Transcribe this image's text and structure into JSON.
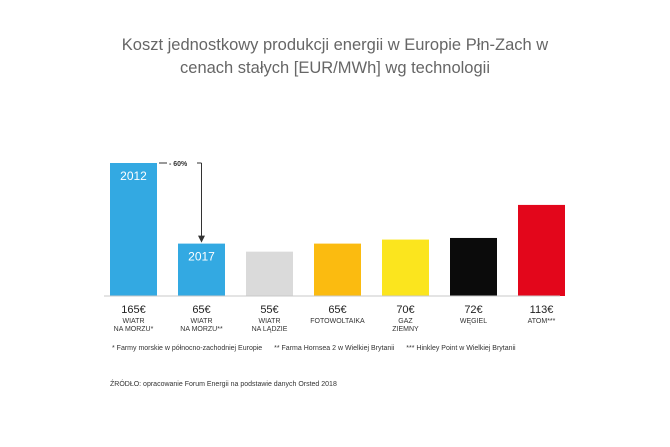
{
  "chart_data": {
    "type": "bar",
    "title": "Koszt jednostkowy produkcji energii w Europie Płn-Zach w cenach stałych [EUR/MWh] wg technologii",
    "title_lines": [
      "Koszt jednostkowy produkcji energii w Europie Płn-Zach w",
      "cenach stałych [EUR/MWh] wg technologii"
    ],
    "categories": [
      [
        "WIATR",
        "NA MORZU*"
      ],
      [
        "WIATR",
        "NA MORZU**"
      ],
      [
        "WIATR",
        "NA LĄDZIE"
      ],
      [
        "FOTOWOLTAIKA"
      ],
      [
        "GAZ",
        "ZIEMNY"
      ],
      [
        "WĘGIEL"
      ],
      [
        "ATOM***"
      ]
    ],
    "values": [
      165,
      65,
      55,
      65,
      70,
      72,
      113
    ],
    "value_labels": [
      "165€",
      "65€",
      "55€",
      "65€",
      "70€",
      "72€",
      "113€"
    ],
    "colors": [
      "#33a9e2",
      "#33a9e2",
      "#dadada",
      "#fbbb10",
      "#fbe51e",
      "#0b0b0b",
      "#e3061b"
    ],
    "in_bar_labels": [
      "2012",
      "2017",
      "",
      "",
      "",
      "",
      ""
    ],
    "annotation": {
      "label": "- 60%",
      "from_index": 0,
      "to_index": 1
    },
    "ylim": [
      0,
      175
    ],
    "grid": false,
    "legend": "none"
  },
  "footnotes": [
    "* Farmy morskie w północno-zachodniej Europie",
    "** Farma Hornsea 2 w Wielkiej Brytanii",
    "*** Hinkley Point w Wielkiej Brytanii"
  ],
  "source": "ŹRÓDŁO: opracowanie Forum Energii na podstawie danych Orsted 2018"
}
